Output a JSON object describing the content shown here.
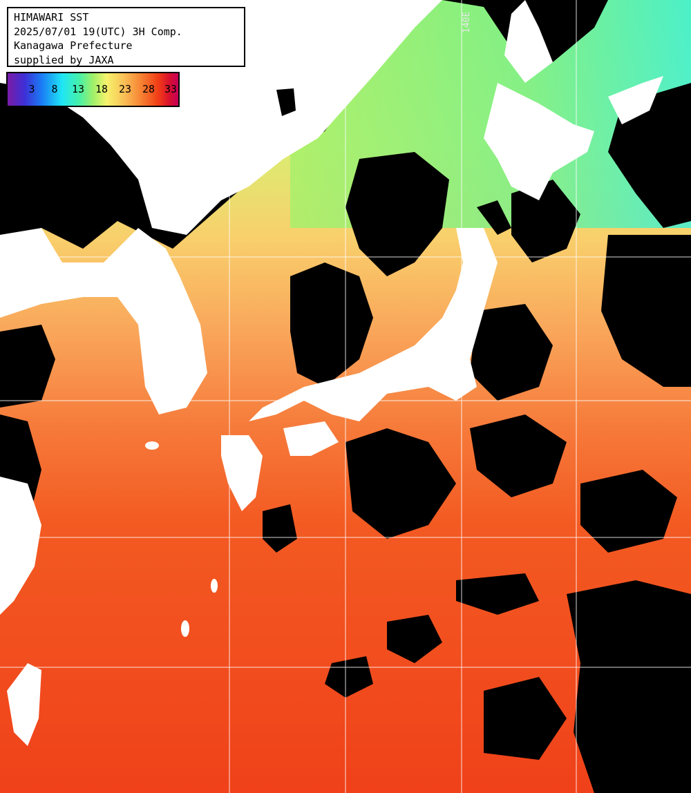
{
  "header": {
    "title": "HIMAWARI SST",
    "datetime": "2025/07/01 19(UTC) 3H Comp.",
    "region": "Kanagawa Prefecture",
    "credit": "supplied by JAXA"
  },
  "legend": {
    "ticks": [
      "3",
      "8",
      "13",
      "18",
      "23",
      "28",
      "33"
    ],
    "unit_scale": "sea surface temperature"
  },
  "grid": {
    "longitude_label": "140E"
  },
  "colors": {
    "land": "#ffffff",
    "cloud": "#000000",
    "warm_sea": "#f24a14",
    "mid_sea": "#f9b65a",
    "cool_sea": "#9ff06a",
    "cold_sea": "#47f0c0",
    "grid_line": "#ffffff"
  }
}
